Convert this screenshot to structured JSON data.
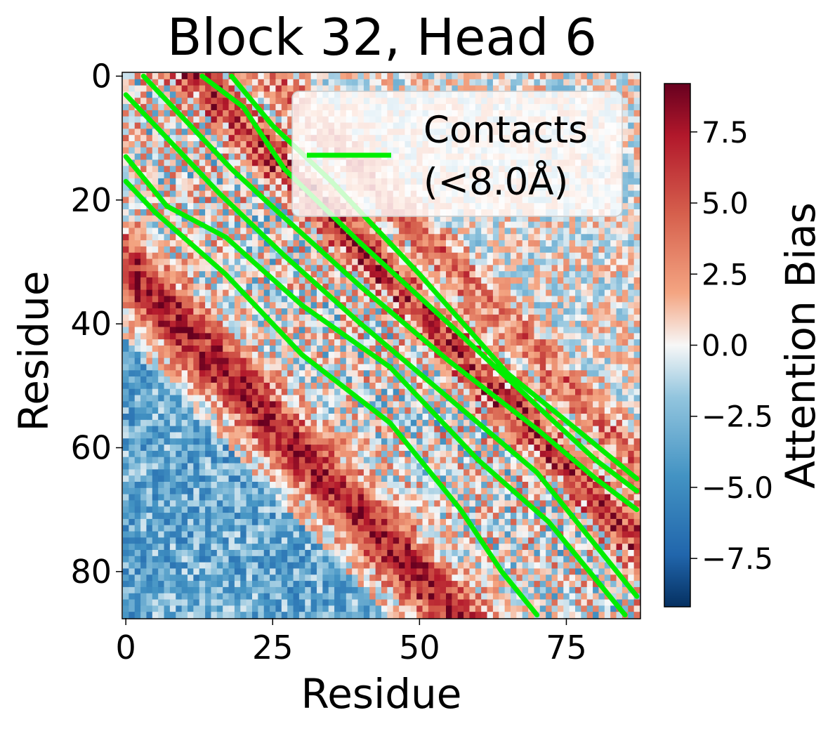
{
  "chart_data": {
    "type": "heatmap",
    "title": "Block 32, Head 6",
    "xlabel": "Residue",
    "ylabel": "Residue",
    "n_residues": 88,
    "x_ticks": [
      0,
      25,
      50,
      75
    ],
    "y_ticks": [
      0,
      20,
      40,
      60,
      80
    ],
    "colormap": "RdBu_r",
    "colorbar": {
      "label": "Attention Bias",
      "vmin": -9.2,
      "vmax": 9.2,
      "ticks": [
        7.5,
        5.0,
        2.5,
        0.0,
        -2.5,
        -5.0,
        -7.5
      ],
      "tick_labels": [
        "7.5",
        "5.0",
        "2.5",
        "0.0",
        "−2.5",
        "−5.0",
        "−7.5"
      ]
    },
    "contact_threshold_angstrom": 8.0,
    "contact_color": "#00ee00",
    "legend": {
      "label_line1": "Contacts",
      "label_line2": "(<8.0Å)",
      "placement": "upper right"
    },
    "contact_band_outlines": [
      {
        "side": "upper",
        "points": [
          [
            3,
            0
          ],
          [
            10,
            7
          ],
          [
            18,
            15
          ],
          [
            26,
            22
          ],
          [
            40,
            34
          ],
          [
            55,
            46
          ],
          [
            70,
            57
          ],
          [
            80,
            65
          ],
          [
            87,
            70
          ]
        ]
      },
      {
        "side": "upper",
        "points": [
          [
            0,
            3
          ],
          [
            8,
            11
          ],
          [
            16,
            19
          ],
          [
            27,
            29
          ],
          [
            40,
            40
          ],
          [
            55,
            52
          ],
          [
            70,
            64
          ],
          [
            87,
            84
          ]
        ]
      },
      {
        "side": "lower",
        "points": [
          [
            0,
            13
          ],
          [
            7,
            21
          ],
          [
            17,
            26
          ],
          [
            30,
            37
          ],
          [
            45,
            47
          ],
          [
            60,
            62
          ],
          [
            72,
            72
          ],
          [
            85,
            87
          ]
        ]
      },
      {
        "side": "lower",
        "points": [
          [
            0,
            17
          ],
          [
            5,
            22
          ],
          [
            17,
            32
          ],
          [
            30,
            45
          ],
          [
            45,
            56
          ],
          [
            57,
            70
          ],
          [
            64,
            80
          ],
          [
            70,
            87
          ]
        ]
      },
      {
        "side": "upper",
        "points": [
          [
            13,
            0
          ],
          [
            20,
            5
          ],
          [
            27,
            15
          ],
          [
            40,
            27
          ],
          [
            55,
            40
          ],
          [
            72,
            55
          ],
          [
            80,
            62
          ],
          [
            87,
            67
          ]
        ]
      },
      {
        "side": "upper",
        "points": [
          [
            18,
            0
          ],
          [
            25,
            8
          ],
          [
            35,
            17
          ],
          [
            50,
            32
          ],
          [
            65,
            48
          ],
          [
            78,
            58
          ],
          [
            87,
            65
          ]
        ]
      }
    ]
  }
}
